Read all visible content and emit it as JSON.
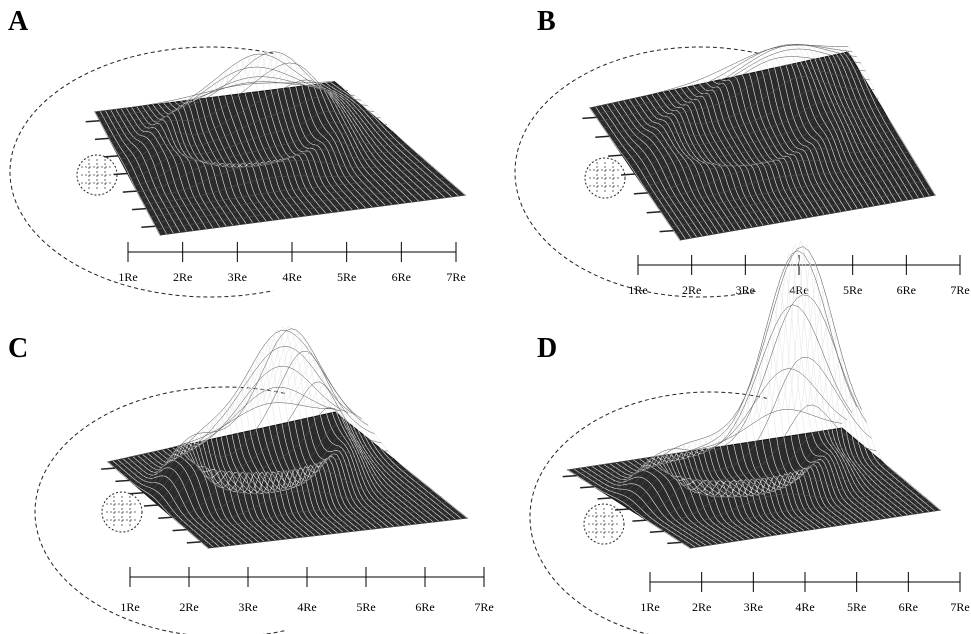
{
  "figure": {
    "axis_ticks": [
      "1Re",
      "2Re",
      "3Re",
      "4Re",
      "5Re",
      "6Re",
      "7Re"
    ],
    "panels": [
      {
        "label": "A",
        "peak_height": 0.55,
        "peak_sharpness": 1.0
      },
      {
        "label": "B",
        "peak_height": 0.45,
        "peak_sharpness": 1.0
      },
      {
        "label": "C",
        "peak_height": 0.85,
        "peak_sharpness": 1.3
      },
      {
        "label": "D",
        "peak_height": 1.0,
        "peak_sharpness": 2.2
      }
    ]
  }
}
